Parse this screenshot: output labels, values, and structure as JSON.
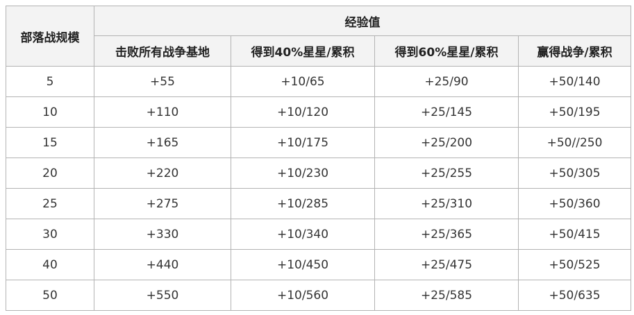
{
  "table": {
    "header": {
      "scale": "部落战规模",
      "group": "经验值",
      "columns": [
        "击败所有战争基地",
        "得到40%星星/累积",
        "得到60%星星/累积",
        "赢得战争/累积"
      ]
    },
    "rows": [
      [
        "5",
        "+55",
        "+10/65",
        "+25/90",
        "+50/140"
      ],
      [
        "10",
        "+110",
        "+10/120",
        "+25/145",
        "+50/195"
      ],
      [
        "15",
        "+165",
        "+10/175",
        "+25/200",
        "+50//250"
      ],
      [
        "20",
        "+220",
        "+10/230",
        "+25/255",
        "+50/305"
      ],
      [
        "25",
        "+275",
        "+10/285",
        "+25/310",
        "+50/360"
      ],
      [
        "30",
        "+330",
        "+10/340",
        "+25/365",
        "+50/415"
      ],
      [
        "40",
        "+440",
        "+10/450",
        "+25/475",
        "+50/525"
      ],
      [
        "50",
        "+550",
        "+10/560",
        "+25/585",
        "+50/635"
      ]
    ]
  }
}
